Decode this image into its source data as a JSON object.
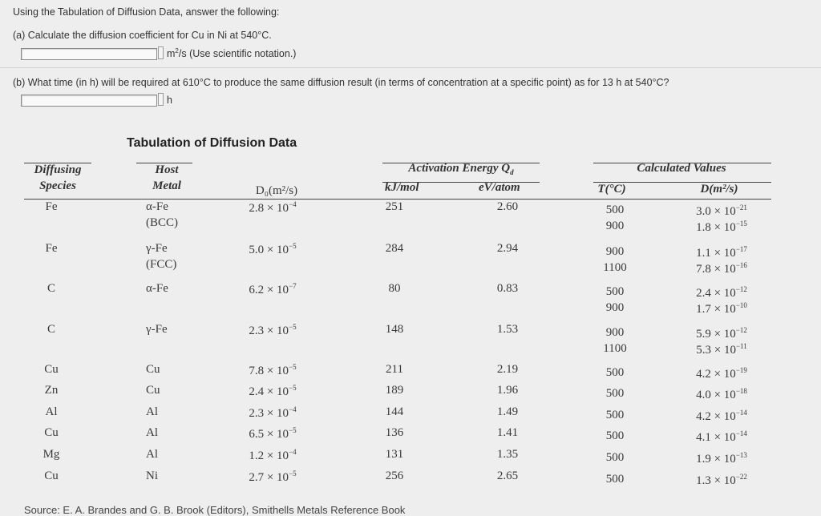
{
  "instructions": "Using the Tabulation of Diffusion Data, answer the following:",
  "part_a": {
    "question": "(a) Calculate the diffusion coefficient for Cu in Ni at 540°C.",
    "unit_prefix": "m",
    "unit_exp": "2",
    "unit_suffix": "/s (Use scientific notation.)"
  },
  "part_b": {
    "question": "(b) What time (in h) will be required at 610°C to produce the same diffusion result (in terms of concentration at a specific point) as for 13 h at 540°C?",
    "unit": "h"
  },
  "table_title": "Tabulation of Diffusion Data",
  "headers": {
    "diffusing": "Diffusing",
    "species": "Species",
    "host": "Host",
    "metal": "Metal",
    "d0": "D₀(m²/s)",
    "activation": "Activation Energy Q",
    "activation_sub": "d",
    "kj": "kJ/mol",
    "ev": "eV/atom",
    "calculated": "Calculated Values",
    "temp": "T(°C)",
    "d": "D(m²/s)"
  },
  "rows": [
    {
      "species": "Fe",
      "host": "α-Fe",
      "host2": "(BCC)",
      "d0": "2.8 × 10",
      "d0e": "−4",
      "kj": "251",
      "ev": "2.60",
      "t1": "500",
      "dv1": "3.0 × 10",
      "de1": "−21",
      "t2": "900",
      "dv2": "1.8 × 10",
      "de2": "−15"
    },
    {
      "species": "Fe",
      "host": "γ-Fe",
      "host2": "(FCC)",
      "d0": "5.0 × 10",
      "d0e": "−5",
      "kj": "284",
      "ev": "2.94",
      "t1": "900",
      "dv1": "1.1 × 10",
      "de1": "−17",
      "t2": "1100",
      "dv2": "7.8 × 10",
      "de2": "−16"
    },
    {
      "species": "C",
      "host": "α-Fe",
      "host2": "",
      "d0": "6.2 × 10",
      "d0e": "−7",
      "kj": "80",
      "ev": "0.83",
      "t1": "500",
      "dv1": "2.4 × 10",
      "de1": "−12",
      "t2": "900",
      "dv2": "1.7 × 10",
      "de2": "−10"
    },
    {
      "species": "C",
      "host": "γ-Fe",
      "host2": "",
      "d0": "2.3 × 10",
      "d0e": "−5",
      "kj": "148",
      "ev": "1.53",
      "t1": "900",
      "dv1": "5.9 × 10",
      "de1": "−12",
      "t2": "1100",
      "dv2": "5.3 × 10",
      "de2": "−11"
    },
    {
      "species": "Cu",
      "host": "Cu",
      "host2": "",
      "d0": "7.8 × 10",
      "d0e": "−5",
      "kj": "211",
      "ev": "2.19",
      "t1": "500",
      "dv1": "4.2 × 10",
      "de1": "−19",
      "t2": "",
      "dv2": "",
      "de2": ""
    },
    {
      "species": "Zn",
      "host": "Cu",
      "host2": "",
      "d0": "2.4 × 10",
      "d0e": "−5",
      "kj": "189",
      "ev": "1.96",
      "t1": "500",
      "dv1": "4.0 × 10",
      "de1": "−18",
      "t2": "",
      "dv2": "",
      "de2": ""
    },
    {
      "species": "Al",
      "host": "Al",
      "host2": "",
      "d0": "2.3 × 10",
      "d0e": "−4",
      "kj": "144",
      "ev": "1.49",
      "t1": "500",
      "dv1": "4.2 × 10",
      "de1": "−14",
      "t2": "",
      "dv2": "",
      "de2": ""
    },
    {
      "species": "Cu",
      "host": "Al",
      "host2": "",
      "d0": "6.5 × 10",
      "d0e": "−5",
      "kj": "136",
      "ev": "1.41",
      "t1": "500",
      "dv1": "4.1 × 10",
      "de1": "−14",
      "t2": "",
      "dv2": "",
      "de2": ""
    },
    {
      "species": "Mg",
      "host": "Al",
      "host2": "",
      "d0": "1.2 × 10",
      "d0e": "−4",
      "kj": "131",
      "ev": "1.35",
      "t1": "500",
      "dv1": "1.9 × 10",
      "de1": "−13",
      "t2": "",
      "dv2": "",
      "de2": ""
    },
    {
      "species": "Cu",
      "host": "Ni",
      "host2": "",
      "d0": "2.7 × 10",
      "d0e": "−5",
      "kj": "256",
      "ev": "2.65",
      "t1": "500",
      "dv1": "1.3 × 10",
      "de1": "−22",
      "t2": "",
      "dv2": "",
      "de2": ""
    }
  ],
  "source": "Source: E. A. Brandes and G. B. Brook (Editors), Smithells Metals Reference Book"
}
